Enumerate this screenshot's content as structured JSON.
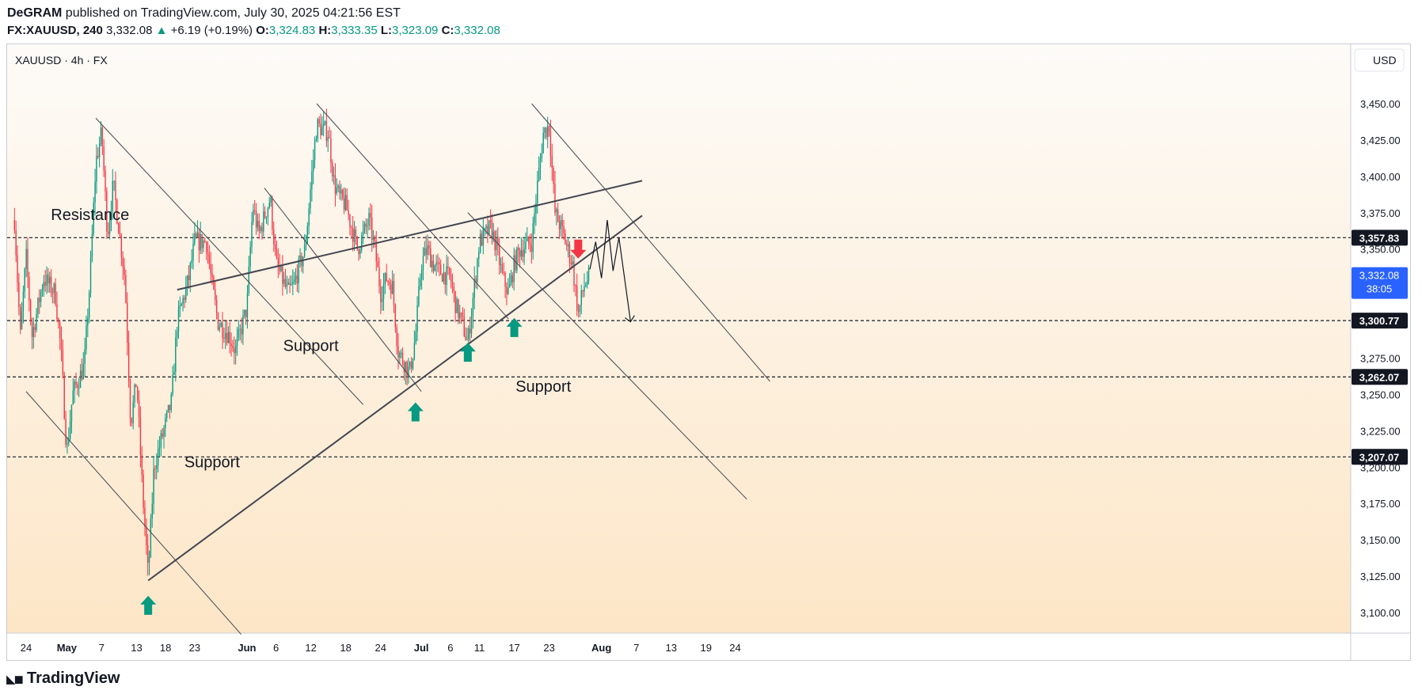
{
  "header": {
    "author": "DeGRAM",
    "published": "published on TradingView.com, July 30, 2025 04:21:56 EST",
    "symbol": "FX:XAUUSD, 240",
    "last": "3,332.08",
    "change": "+6.19 (+0.19%)",
    "o_label": "O:",
    "o": "3,324.83",
    "h_label": "H:",
    "h": "3,333.35",
    "l_label": "L:",
    "l": "3,323.09",
    "c_label": "C:",
    "c": "3,332.08"
  },
  "legend": "XAUUSD · 4h · FX",
  "currency": "USD",
  "footer_brand": "TradingView",
  "colors": {
    "up": "#089981",
    "down": "#f23645",
    "bg_top": "#fdfbf8",
    "bg_bottom": "#fde6c7",
    "trendline": "#434651",
    "arrow_up": "#089981",
    "arrow_down": "#f23645",
    "price_tag": "#2962ff"
  },
  "chart_data": {
    "type": "candlestick",
    "title": "XAUUSD · 4h · FX",
    "ylim": [
      3085,
      3478
    ],
    "y_ticks": [
      3100,
      3125,
      3150,
      3175,
      3200,
      3225,
      3250,
      3275,
      3300,
      3325,
      3350,
      3375,
      3400,
      3425,
      3450
    ],
    "x_ticks": [
      "24",
      "May",
      "7",
      "13",
      "18",
      "23",
      "Jun",
      "6",
      "12",
      "18",
      "24",
      "Jul",
      "6",
      "11",
      "17",
      "23",
      "Aug",
      "7",
      "13",
      "19",
      "24"
    ],
    "x_tick_dates": [
      "2025-04-24",
      "2025-05-01",
      "2025-05-07",
      "2025-05-13",
      "2025-05-18",
      "2025-05-23",
      "2025-06-01",
      "2025-06-06",
      "2025-06-12",
      "2025-06-18",
      "2025-06-24",
      "2025-07-01",
      "2025-07-06",
      "2025-07-11",
      "2025-07-17",
      "2025-07-23",
      "2025-08-01",
      "2025-08-07",
      "2025-08-13",
      "2025-08-19",
      "2025-08-24"
    ],
    "price_path": [
      [
        "2025-04-22",
        3370
      ],
      [
        "2025-04-23",
        3290
      ],
      [
        "2025-04-24",
        3345
      ],
      [
        "2025-04-25",
        3290
      ],
      [
        "2025-04-27",
        3330
      ],
      [
        "2025-04-29",
        3320
      ],
      [
        "2025-04-30",
        3280
      ],
      [
        "2025-05-01",
        3210
      ],
      [
        "2025-05-02",
        3250
      ],
      [
        "2025-05-04",
        3270
      ],
      [
        "2025-05-05",
        3330
      ],
      [
        "2025-05-06",
        3410
      ],
      [
        "2025-05-07",
        3430
      ],
      [
        "2025-05-08",
        3360
      ],
      [
        "2025-05-09",
        3395
      ],
      [
        "2025-05-11",
        3330
      ],
      [
        "2025-05-12",
        3230
      ],
      [
        "2025-05-13",
        3260
      ],
      [
        "2025-05-14",
        3185
      ],
      [
        "2025-05-15",
        3125
      ],
      [
        "2025-05-16",
        3200
      ],
      [
        "2025-05-18",
        3230
      ],
      [
        "2025-05-19",
        3245
      ],
      [
        "2025-05-20",
        3300
      ],
      [
        "2025-05-22",
        3330
      ],
      [
        "2025-05-23",
        3355
      ],
      [
        "2025-05-25",
        3355
      ],
      [
        "2025-05-26",
        3325
      ],
      [
        "2025-05-27",
        3300
      ],
      [
        "2025-05-29",
        3290
      ],
      [
        "2025-05-30",
        3280
      ],
      [
        "2025-06-01",
        3310
      ],
      [
        "2025-06-02",
        3380
      ],
      [
        "2025-06-03",
        3360
      ],
      [
        "2025-06-05",
        3385
      ],
      [
        "2025-06-06",
        3340
      ],
      [
        "2025-06-08",
        3320
      ],
      [
        "2025-06-09",
        3325
      ],
      [
        "2025-06-11",
        3350
      ],
      [
        "2025-06-12",
        3395
      ],
      [
        "2025-06-13",
        3435
      ],
      [
        "2025-06-15",
        3430
      ],
      [
        "2025-06-16",
        3395
      ],
      [
        "2025-06-17",
        3385
      ],
      [
        "2025-06-18",
        3380
      ],
      [
        "2025-06-19",
        3365
      ],
      [
        "2025-06-20",
        3350
      ],
      [
        "2025-06-22",
        3370
      ],
      [
        "2025-06-23",
        3350
      ],
      [
        "2025-06-24",
        3320
      ],
      [
        "2025-06-25",
        3330
      ],
      [
        "2025-06-26",
        3325
      ],
      [
        "2025-06-27",
        3280
      ],
      [
        "2025-06-29",
        3265
      ],
      [
        "2025-06-30",
        3290
      ],
      [
        "2025-07-01",
        3340
      ],
      [
        "2025-07-02",
        3350
      ],
      [
        "2025-07-03",
        3340
      ],
      [
        "2025-07-04",
        3335
      ],
      [
        "2025-07-06",
        3330
      ],
      [
        "2025-07-07",
        3310
      ],
      [
        "2025-07-08",
        3300
      ],
      [
        "2025-07-09",
        3285
      ],
      [
        "2025-07-10",
        3320
      ],
      [
        "2025-07-11",
        3355
      ],
      [
        "2025-07-13",
        3365
      ],
      [
        "2025-07-14",
        3350
      ],
      [
        "2025-07-15",
        3330
      ],
      [
        "2025-07-16",
        3320
      ],
      [
        "2025-07-17",
        3340
      ],
      [
        "2025-07-18",
        3350
      ],
      [
        "2025-07-20",
        3355
      ],
      [
        "2025-07-21",
        3395
      ],
      [
        "2025-07-22",
        3430
      ],
      [
        "2025-07-23",
        3435
      ],
      [
        "2025-07-24",
        3375
      ],
      [
        "2025-07-25",
        3365
      ],
      [
        "2025-07-27",
        3340
      ],
      [
        "2025-07-28",
        3305
      ],
      [
        "2025-07-29",
        3325
      ],
      [
        "2025-07-30",
        3332
      ]
    ],
    "horizontal_levels": [
      {
        "price": 3357.83,
        "label": "3,357.83"
      },
      {
        "price": 3300.77,
        "label": "3,300.77"
      },
      {
        "price": 3262.07,
        "label": "3,262.07"
      },
      {
        "price": 3207.07,
        "label": "3,207.07"
      }
    ],
    "current_price": {
      "price": 3332.08,
      "label": "3,332.08",
      "countdown": "38:05"
    },
    "trendlines": [
      {
        "kind": "bold",
        "from": [
          "2025-05-15",
          3122
        ],
        "to": [
          "2025-08-08",
          3373
        ]
      },
      {
        "kind": "bold",
        "from": [
          "2025-05-20",
          3322
        ],
        "to": [
          "2025-08-08",
          3397
        ]
      },
      {
        "kind": "thin",
        "from": [
          "2025-04-24",
          3252
        ],
        "to": [
          "2025-05-31",
          3085
        ]
      },
      {
        "kind": "thin",
        "from": [
          "2025-05-06",
          3440
        ],
        "to": [
          "2025-06-21",
          3243
        ]
      },
      {
        "kind": "thin",
        "from": [
          "2025-06-04",
          3392
        ],
        "to": [
          "2025-07-01",
          3252
        ]
      },
      {
        "kind": "thin",
        "from": [
          "2025-06-13",
          3450
        ],
        "to": [
          "2025-07-16",
          3302
        ]
      },
      {
        "kind": "thin",
        "from": [
          "2025-07-09",
          3375
        ],
        "to": [
          "2025-08-26",
          3178
        ]
      },
      {
        "kind": "thin",
        "from": [
          "2025-07-20",
          3450
        ],
        "to": [
          "2025-08-30",
          3259
        ]
      }
    ],
    "projection": [
      [
        "2025-07-30",
        3336
      ],
      [
        "2025-07-31",
        3355
      ],
      [
        "2025-08-01",
        3330
      ],
      [
        "2025-08-02",
        3370
      ],
      [
        "2025-08-03",
        3335
      ],
      [
        "2025-08-04",
        3358
      ],
      [
        "2025-08-06",
        3300
      ]
    ],
    "annotations": [
      {
        "text": "Resistance",
        "at": [
          "2025-05-05",
          3370
        ]
      },
      {
        "text": "Support",
        "at": [
          "2025-06-12",
          3280
        ]
      },
      {
        "text": "Support",
        "at": [
          "2025-07-22",
          3252
        ]
      },
      {
        "text": "Support",
        "at": [
          "2025-05-26",
          3200
        ]
      }
    ],
    "signals": [
      {
        "dir": "up",
        "at": [
          "2025-05-15",
          3105
        ]
      },
      {
        "dir": "up",
        "at": [
          "2025-06-30",
          3238
        ]
      },
      {
        "dir": "up",
        "at": [
          "2025-07-09",
          3279
        ]
      },
      {
        "dir": "up",
        "at": [
          "2025-07-17",
          3296
        ]
      },
      {
        "dir": "down",
        "at": [
          "2025-07-28",
          3350
        ]
      }
    ]
  }
}
